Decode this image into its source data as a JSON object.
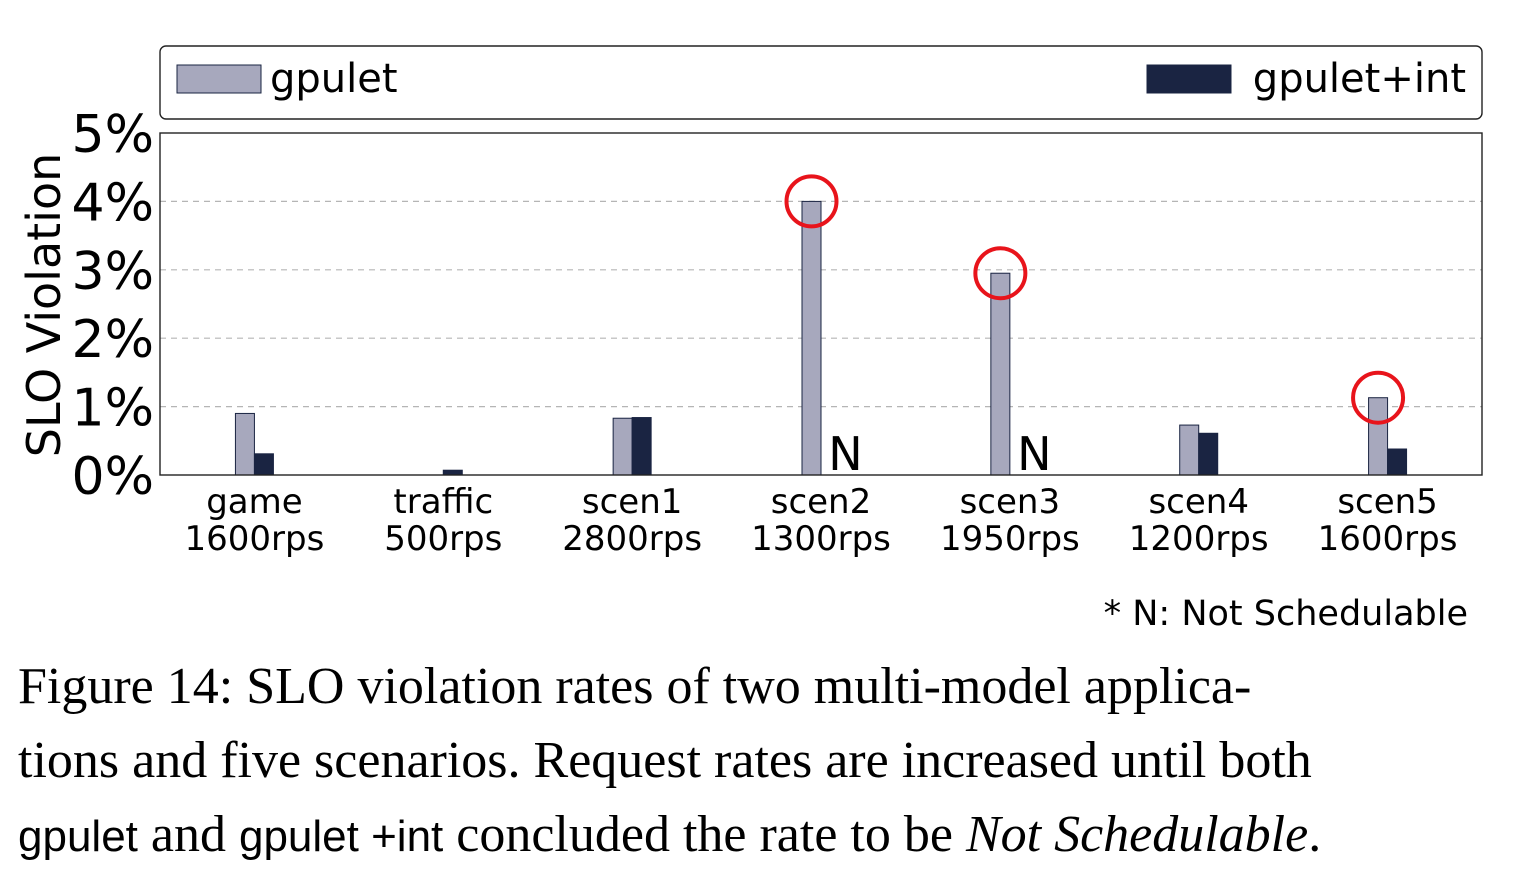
{
  "chart_data": {
    "type": "bar",
    "ylabel": "SLO Violation",
    "ylim": [
      0,
      5
    ],
    "yticks": [
      "0%",
      "1%",
      "2%",
      "3%",
      "4%",
      "5%"
    ],
    "grid": "horizontal dashed",
    "legend_position": "top, outside plot",
    "categories": [
      [
        "game",
        "1600rps"
      ],
      [
        "traffic",
        "500rps"
      ],
      [
        "scen1",
        "2800rps"
      ],
      [
        "scen2",
        "1300rps"
      ],
      [
        "scen3",
        "1950rps"
      ],
      [
        "scen4",
        "1200rps"
      ],
      [
        "scen5",
        "1600rps"
      ]
    ],
    "series": [
      {
        "name": "gpulet",
        "color": "#a7a8bd",
        "values": [
          0.9,
          0.0,
          0.83,
          4.0,
          2.95,
          0.73,
          1.13
        ]
      },
      {
        "name": "gpulet+int",
        "color": "#1a2442",
        "values": [
          0.31,
          0.07,
          0.84,
          null,
          null,
          0.61,
          0.38
        ]
      }
    ],
    "not_schedulable_marker": "N",
    "highlighted": [
      {
        "category": 3,
        "series": 0
      },
      {
        "category": 4,
        "series": 0
      },
      {
        "category": 6,
        "series": 0
      }
    ],
    "highlight_color": "#e8141b",
    "footnote": "* N: Not Schedulable"
  },
  "caption": {
    "line1": "Figure 14: SLO violation rates of two multi-model applica-",
    "line2": "tions and five scenarios. Request rates are increased until both",
    "line3_a": "gpulet",
    "line3_b": " and ",
    "line3_c": "gpulet +int",
    "line3_d": " concluded the rate to be ",
    "line3_e": "Not Schedulable",
    "line3_f": "."
  }
}
